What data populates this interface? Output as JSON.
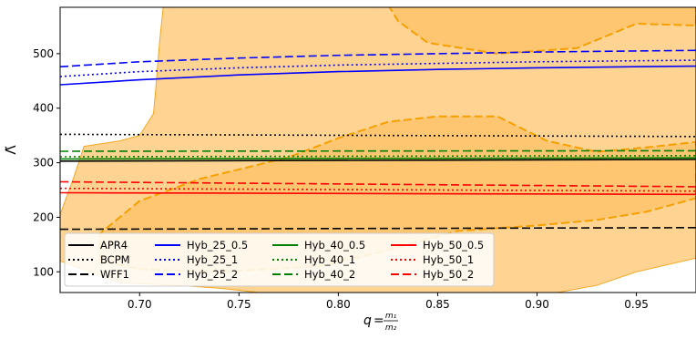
{
  "chart_data": {
    "type": "line",
    "xlabel": "q",
    "xlabel_fraction": {
      "numerator": "m₁",
      "denominator": "m₂"
    },
    "ylabel": "Λ̃",
    "xlim": [
      0.66,
      0.98
    ],
    "ylim": [
      62,
      585
    ],
    "xticks": [
      0.7,
      0.75,
      0.8,
      0.85,
      0.9,
      0.95
    ],
    "xtick_labels": [
      "0.70",
      "0.75",
      "0.80",
      "0.85",
      "0.90",
      "0.95"
    ],
    "yticks": [
      100,
      200,
      300,
      400,
      500
    ],
    "ytick_labels": [
      "100",
      "200",
      "300",
      "400",
      "500"
    ],
    "grid": false,
    "legend_location": "lower-left",
    "legend_columns": 4,
    "series": [
      {
        "name": "APR4",
        "color": "#000000",
        "style": "solid",
        "x": [
          0.66,
          0.98
        ],
        "y": [
          303,
          306
        ]
      },
      {
        "name": "BCPM",
        "color": "#000000",
        "style": "dotted",
        "x": [
          0.66,
          0.98
        ],
        "y": [
          352,
          348
        ]
      },
      {
        "name": "WFF1",
        "color": "#000000",
        "style": "dashed",
        "x": [
          0.66,
          0.98
        ],
        "y": [
          178,
          181
        ]
      },
      {
        "name": "Hyb_25_0.5",
        "color": "#0000ff",
        "style": "solid",
        "x": [
          0.66,
          0.7,
          0.75,
          0.8,
          0.85,
          0.9,
          0.95,
          0.98
        ],
        "y": [
          443,
          452,
          461,
          467,
          471,
          474,
          476,
          477
        ]
      },
      {
        "name": "Hyb_25_1",
        "color": "#0000ff",
        "style": "dotted",
        "x": [
          0.66,
          0.7,
          0.75,
          0.8,
          0.85,
          0.9,
          0.95,
          0.98
        ],
        "y": [
          458,
          467,
          474,
          479,
          482,
          485,
          487,
          488
        ]
      },
      {
        "name": "Hyb_25_2",
        "color": "#0000ff",
        "style": "dashed",
        "x": [
          0.66,
          0.7,
          0.75,
          0.8,
          0.85,
          0.9,
          0.95,
          0.98
        ],
        "y": [
          476,
          485,
          492,
          497,
          500,
          503,
          505,
          506
        ]
      },
      {
        "name": "Hyb_40_0.5",
        "color": "#008000",
        "style": "solid",
        "x": [
          0.66,
          0.98
        ],
        "y": [
          307,
          309
        ]
      },
      {
        "name": "Hyb_40_1",
        "color": "#008000",
        "style": "dotted",
        "x": [
          0.66,
          0.98
        ],
        "y": [
          311,
          313
        ]
      },
      {
        "name": "Hyb_40_2",
        "color": "#008000",
        "style": "dashed",
        "x": [
          0.66,
          0.98
        ],
        "y": [
          321,
          322
        ]
      },
      {
        "name": "Hyb_50_0.5",
        "color": "#ff0000",
        "style": "solid",
        "x": [
          0.66,
          0.98
        ],
        "y": [
          245,
          242
        ]
      },
      {
        "name": "Hyb_50_1",
        "color": "#ff0000",
        "style": "dotted",
        "x": [
          0.66,
          0.98
        ],
        "y": [
          253,
          248
        ]
      },
      {
        "name": "Hyb_50_2",
        "color": "#ff0000",
        "style": "dashed",
        "x": [
          0.66,
          0.98
        ],
        "y": [
          265,
          256
        ]
      }
    ],
    "regions": [
      {
        "level": "90%",
        "fill": "#ffcc80",
        "edge": "#f5a623",
        "style": "solid",
        "outline": [
          [
            0.66,
            205
          ],
          [
            0.667,
            275
          ],
          [
            0.672,
            330
          ],
          [
            0.69,
            340
          ],
          [
            0.7,
            350
          ],
          [
            0.707,
            390
          ],
          [
            0.708,
            430
          ],
          [
            0.71,
            520
          ],
          [
            0.712,
            590
          ],
          [
            0.98,
            590
          ],
          [
            0.98,
            125
          ],
          [
            0.95,
            100
          ],
          [
            0.93,
            75
          ],
          [
            0.91,
            62
          ],
          [
            0.76,
            62
          ],
          [
            0.74,
            70
          ],
          [
            0.72,
            75
          ],
          [
            0.69,
            80
          ],
          [
            0.675,
            100
          ],
          [
            0.66,
            120
          ]
        ]
      },
      {
        "level": "50%",
        "fill": "#ffc266",
        "edge": "#f5a000",
        "style": "dashed",
        "outline": [
          [
            0.825,
            590
          ],
          [
            0.83,
            560
          ],
          [
            0.845,
            520
          ],
          [
            0.88,
            500
          ],
          [
            0.92,
            510
          ],
          [
            0.95,
            555
          ],
          [
            0.975,
            552
          ],
          [
            0.98,
            552
          ],
          [
            0.98,
            590
          ]
        ]
      },
      {
        "level": "50%",
        "fill": "#ffc266",
        "edge": "#f5a000",
        "style": "dashed",
        "outline": [
          [
            0.68,
            120
          ],
          [
            0.68,
            170
          ],
          [
            0.7,
            230
          ],
          [
            0.73,
            270
          ],
          [
            0.775,
            310
          ],
          [
            0.8,
            345
          ],
          [
            0.825,
            375
          ],
          [
            0.85,
            385
          ],
          [
            0.88,
            385
          ],
          [
            0.905,
            340
          ],
          [
            0.93,
            320
          ],
          [
            0.955,
            328
          ],
          [
            0.98,
            338
          ],
          [
            0.98,
            235
          ],
          [
            0.955,
            210
          ],
          [
            0.93,
            195
          ],
          [
            0.9,
            185
          ],
          [
            0.86,
            175
          ],
          [
            0.82,
            135
          ],
          [
            0.79,
            110
          ],
          [
            0.74,
            100
          ],
          [
            0.7,
            105
          ]
        ]
      }
    ]
  }
}
